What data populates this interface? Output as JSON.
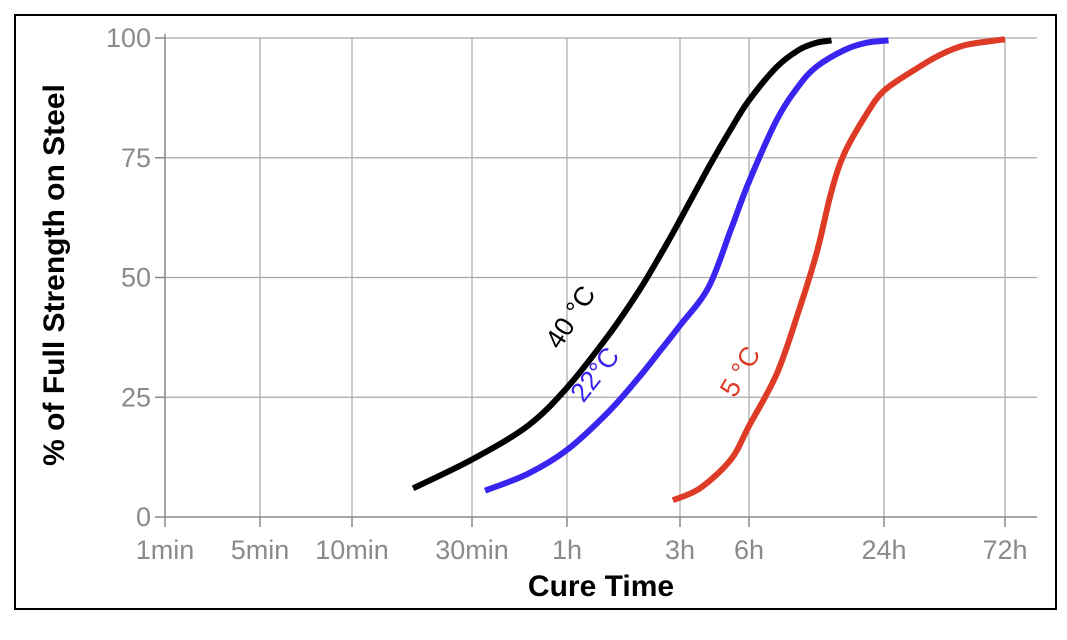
{
  "chart_data": {
    "type": "line",
    "xlabel": "Cure Time",
    "ylabel": "% of Full Strength on Steel",
    "x_scale": "log",
    "x_unit": "minutes",
    "x_ticks": [
      {
        "label": "1min",
        "value": 1
      },
      {
        "label": "5min",
        "value": 5
      },
      {
        "label": "10min",
        "value": 10
      },
      {
        "label": "30min",
        "value": 30
      },
      {
        "label": "1h",
        "value": 60
      },
      {
        "label": "3h",
        "value": 180
      },
      {
        "label": "6h",
        "value": 360
      },
      {
        "label": "24h",
        "value": 1440
      },
      {
        "label": "72h",
        "value": 4320
      }
    ],
    "y_ticks": [
      {
        "label": "0",
        "value": 0
      },
      {
        "label": "25",
        "value": 25
      },
      {
        "label": "50",
        "value": 50
      },
      {
        "label": "75",
        "value": 75
      },
      {
        "label": "100",
        "value": 100
      }
    ],
    "ylim": [
      0,
      100
    ],
    "grid": true,
    "series": [
      {
        "name": "40 °C",
        "color": "#000000",
        "points": [
          [
            17.5,
            6
          ],
          [
            30,
            12
          ],
          [
            45,
            19
          ],
          [
            60,
            27
          ],
          [
            90,
            38
          ],
          [
            120,
            47
          ],
          [
            150,
            55
          ],
          [
            180,
            62
          ],
          [
            240,
            73
          ],
          [
            300,
            81
          ],
          [
            360,
            87
          ],
          [
            480,
            94
          ],
          [
            600,
            97.5
          ],
          [
            720,
            99
          ],
          [
            840,
            99.5
          ]
        ]
      },
      {
        "name": "22°C",
        "color": "#3a24f0",
        "points": [
          [
            33,
            5.5
          ],
          [
            45,
            9
          ],
          [
            60,
            14
          ],
          [
            90,
            22
          ],
          [
            120,
            29
          ],
          [
            150,
            35
          ],
          [
            180,
            40
          ],
          [
            240,
            48
          ],
          [
            300,
            60
          ],
          [
            360,
            70
          ],
          [
            480,
            83
          ],
          [
            600,
            90
          ],
          [
            720,
            94
          ],
          [
            960,
            97.5
          ],
          [
            1200,
            99
          ],
          [
            1500,
            99.5
          ]
        ]
      },
      {
        "name": "5 °C",
        "color": "#dd3b25",
        "points": [
          [
            168,
            3.5
          ],
          [
            220,
            6
          ],
          [
            300,
            12
          ],
          [
            360,
            19
          ],
          [
            480,
            30
          ],
          [
            600,
            43
          ],
          [
            720,
            55
          ],
          [
            840,
            68
          ],
          [
            960,
            76
          ],
          [
            1200,
            84
          ],
          [
            1440,
            89
          ],
          [
            1920,
            93.5
          ],
          [
            2400,
            96.5
          ],
          [
            3000,
            98.5
          ],
          [
            4000,
            99.5
          ],
          [
            4320,
            99.7
          ]
        ]
      }
    ],
    "annotations": [
      "40 °C",
      "22°C",
      "5 °C"
    ]
  }
}
